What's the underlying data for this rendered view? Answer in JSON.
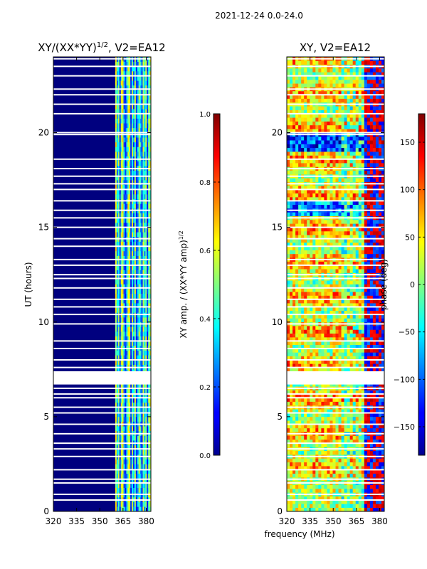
{
  "figure": {
    "suptitle": "2021-12-24 0.0-24.0",
    "shared_xlabel": "frequency (MHz)"
  },
  "chart_data": [
    {
      "type": "heatmap",
      "title_prefix": "XY/(XX*YY)",
      "title_exponent": "1/2",
      "title_suffix": ", V2=EA12",
      "xlabel": "",
      "ylabel": "UT (hours)",
      "xlim": [
        320,
        383
      ],
      "ylim": [
        0,
        24
      ],
      "xticks": [
        320,
        335,
        350,
        365,
        380
      ],
      "yticks": [
        0,
        5,
        10,
        15,
        20
      ],
      "blank_rows_hours": [
        0.6,
        0.9,
        1.5,
        1.7,
        2.2,
        2.9,
        3.3,
        3.6,
        4.1,
        4.6,
        5.2,
        5.5,
        6.0,
        6.2,
        6.5,
        6.8,
        7.0,
        7.2,
        7.6,
        8.0,
        8.6,
        9.0,
        9.9,
        10.4,
        10.8,
        11.2,
        11.8,
        12.3,
        12.5,
        13.0,
        13.3,
        14.0,
        14.4,
        15.0,
        15.5,
        15.9,
        16.4,
        17.0,
        17.3,
        17.7,
        18.1,
        18.6,
        19.9,
        20.0,
        21.0,
        21.5,
        22.0,
        22.3,
        23.0,
        23.5,
        23.9
      ],
      "gap_hours": [
        6.7,
        7.4
      ],
      "active_channels_mhz": [
        360,
        383
      ],
      "colorbar": {
        "label": "XY amp. / (XX*YY amp)",
        "label_exponent": "1/2",
        "range": [
          0.0,
          1.0
        ],
        "ticks": [
          "0.0",
          "0.2",
          "0.4",
          "0.6",
          "0.8",
          "1.0"
        ],
        "colormap": "jet"
      }
    },
    {
      "type": "heatmap",
      "title": "XY, V2=EA12",
      "xlabel": "frequency (MHz)",
      "ylabel": "",
      "xlim": [
        320,
        383
      ],
      "ylim": [
        0,
        24
      ],
      "xticks": [
        320,
        335,
        350,
        365,
        380
      ],
      "yticks": [
        0,
        5,
        10,
        15,
        20
      ],
      "colorbar": {
        "label": "phase (deg)",
        "range": [
          -180,
          180
        ],
        "ticks": [
          "−150",
          "−100",
          "−50",
          "0",
          "50",
          "100",
          "150"
        ],
        "tick_values": [
          -150,
          -100,
          -50,
          0,
          50,
          100,
          150
        ],
        "colormap": "jet"
      }
    }
  ]
}
